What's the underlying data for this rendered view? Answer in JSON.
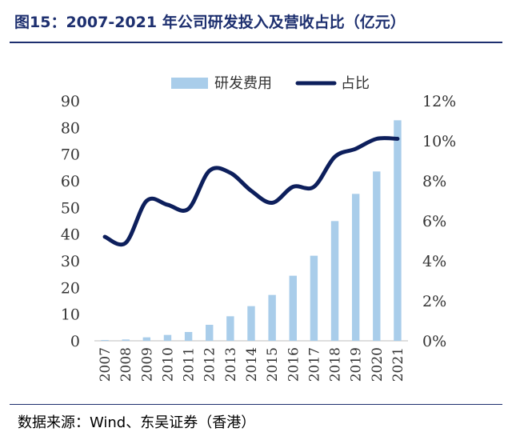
{
  "header": {
    "title": "图15：2007-2021 年公司研发投入及营收占比（亿元）"
  },
  "footer": {
    "source": "数据来源：Wind、东吴证券（香港）"
  },
  "chart_data": {
    "type": "bar",
    "title": "图15：2007-2021 年公司研发投入及营收占比（亿元）",
    "categories": [
      "2007",
      "2008",
      "2009",
      "2010",
      "2011",
      "2012",
      "2013",
      "2014",
      "2015",
      "2016",
      "2017",
      "2018",
      "2019",
      "2020",
      "2021"
    ],
    "series": [
      {
        "name": "研发费用",
        "type": "bar",
        "axis": "left",
        "color": "#a9cdea",
        "values": [
          0.3,
          0.5,
          1.3,
          2.2,
          3.3,
          6.0,
          9.2,
          13.0,
          17.2,
          24.4,
          31.9,
          44.9,
          55.1,
          63.5,
          82.7
        ]
      },
      {
        "name": "占比",
        "type": "line",
        "axis": "right",
        "color": "#0d1f5c",
        "values": [
          5.2,
          4.9,
          7.0,
          6.8,
          6.6,
          8.5,
          8.4,
          7.5,
          6.9,
          7.7,
          7.7,
          9.2,
          9.6,
          10.1,
          10.1
        ]
      }
    ],
    "y_left": {
      "min": 0,
      "max": 90,
      "ticks": [
        "0",
        "10",
        "20",
        "30",
        "40",
        "50",
        "60",
        "70",
        "80",
        "90"
      ]
    },
    "y_right": {
      "min": 0,
      "max": 12,
      "ticks": [
        "0%",
        "2%",
        "4%",
        "6%",
        "8%",
        "10%",
        "12%"
      ]
    },
    "grid": false,
    "legend_position": "top-center"
  }
}
